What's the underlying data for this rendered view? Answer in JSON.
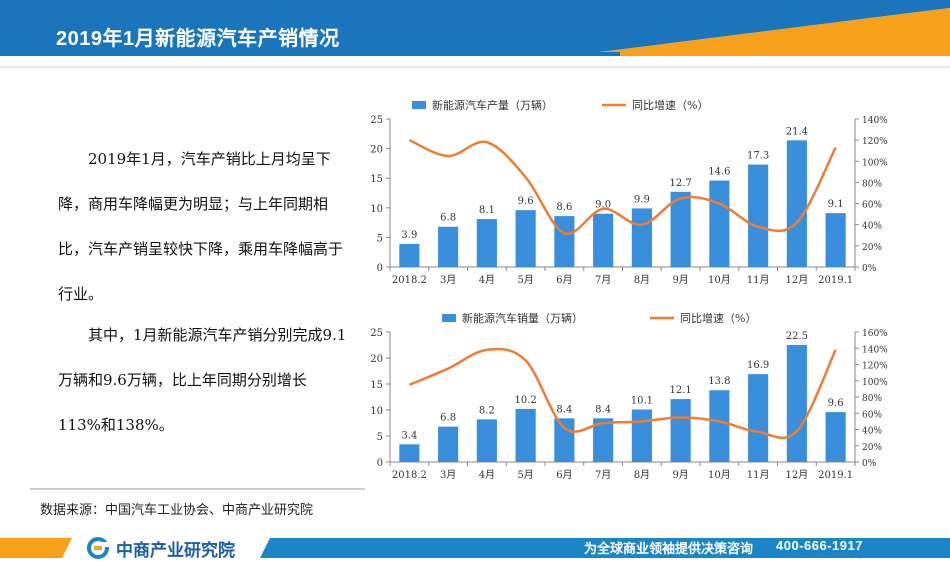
{
  "header": {
    "title": "2019年1月新能源汽车产销情况"
  },
  "text": {
    "paragraph1": "2019年1月，汽车产销比上月均呈下降，商用车降幅更为明显；与上年同期相比，汽车产销呈较快下降，乘用车降幅高于行业。",
    "paragraph2": "其中，1月新能源汽车产销分别完成9.1万辆和9.6万辆，比上年同期分别增长113%和138%。"
  },
  "source": "数据来源：中国汽车工业协会、中商产业研究院",
  "footer": {
    "logo": "中商产业研究院",
    "slogan": "为全球商业领袖提供决策咨询",
    "phone": "400-666-1917"
  },
  "colors": {
    "header_blue": "#1a75bc",
    "accent_orange": "#f7a11a",
    "bar_blue": "#3a8fdc",
    "line_orange": "#ed7d31",
    "footer_blue": "#1a86c8"
  },
  "chart_data": [
    {
      "type": "bar",
      "categories": [
        "2018.2",
        "3月",
        "4月",
        "5月",
        "6月",
        "7月",
        "8月",
        "9月",
        "10月",
        "11月",
        "12月",
        "2019.1"
      ],
      "series": [
        {
          "name": "新能源汽车产量（万辆）",
          "kind": "bar",
          "axis": "left",
          "values": [
            3.9,
            6.8,
            8.1,
            9.6,
            8.6,
            9.0,
            9.9,
            12.7,
            14.6,
            17.3,
            21.4,
            9.1
          ]
        },
        {
          "name": "同比增速（%）",
          "kind": "line",
          "axis": "right",
          "values": [
            120,
            105,
            118,
            85,
            32,
            55,
            40,
            65,
            60,
            38,
            42,
            113
          ]
        }
      ],
      "data_labels": [
        "3.9",
        "6.8",
        "8.1",
        "9.6",
        "8.6",
        "9.0",
        "9.9",
        "12.7",
        "14.6",
        "17.3",
        "21.4",
        "9.1"
      ],
      "ylim": [
        0,
        25
      ],
      "yticks": [
        "0",
        "5",
        "10",
        "15",
        "20",
        "25"
      ],
      "y2lim": [
        0,
        140
      ],
      "y2ticks": [
        "0%",
        "20%",
        "40%",
        "60%",
        "80%",
        "100%",
        "120%",
        "140%"
      ],
      "legend_position": "top"
    },
    {
      "type": "bar",
      "categories": [
        "2018.2",
        "3月",
        "4月",
        "5月",
        "6月",
        "7月",
        "8月",
        "9月",
        "10月",
        "11月",
        "12月",
        "2019.1"
      ],
      "series": [
        {
          "name": "新能源汽车销量（万辆）",
          "kind": "bar",
          "axis": "left",
          "values": [
            3.4,
            6.8,
            8.2,
            10.2,
            8.4,
            8.4,
            10.1,
            12.1,
            13.8,
            16.9,
            22.5,
            9.6
          ]
        },
        {
          "name": "同比增速（%）",
          "kind": "line",
          "axis": "right",
          "values": [
            95,
            115,
            138,
            125,
            42,
            48,
            50,
            55,
            50,
            37,
            38,
            138
          ]
        }
      ],
      "data_labels": [
        "3.4",
        "6.8",
        "8.2",
        "10.2",
        "8.4",
        "8.4",
        "10.1",
        "12.1",
        "13.8",
        "16.9",
        "22.5",
        "9.6"
      ],
      "ylim": [
        0,
        25
      ],
      "yticks": [
        "0",
        "5",
        "10",
        "15",
        "20",
        "25"
      ],
      "y2lim": [
        0,
        160
      ],
      "y2ticks": [
        "0%",
        "20%",
        "40%",
        "60%",
        "80%",
        "100%",
        "120%",
        "140%",
        "160%"
      ],
      "legend_position": "top"
    }
  ]
}
